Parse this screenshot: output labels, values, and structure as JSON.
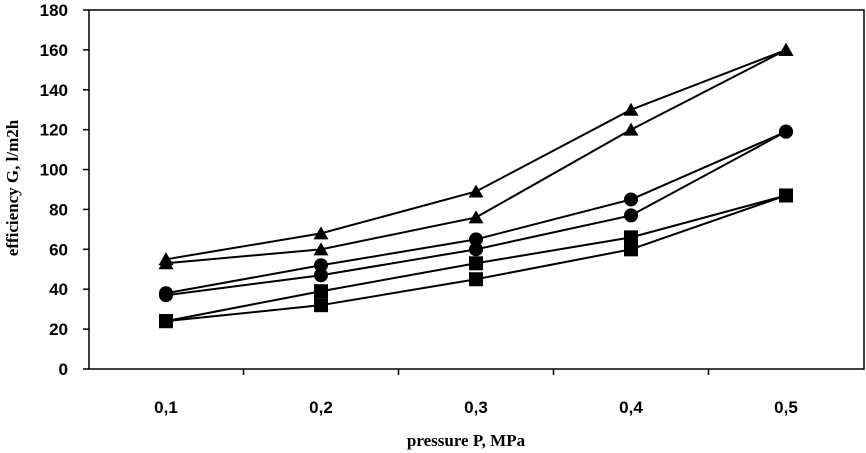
{
  "chart_data": {
    "type": "line",
    "title": "",
    "xlabel": "pressure P, MPa",
    "ylabel": "efficiency G, l/m2h",
    "categories": [
      "0,1",
      "0,2",
      "0,3",
      "0,4",
      "0,5"
    ],
    "x": [
      0.1,
      0.2,
      0.3,
      0.4,
      0.5
    ],
    "ylim": [
      0,
      180
    ],
    "yticks": [
      0,
      20,
      40,
      60,
      80,
      100,
      120,
      140,
      160,
      180
    ],
    "ytick_labels": [
      "0",
      "20",
      "40",
      "60",
      "80",
      "100",
      "120",
      "140",
      "160",
      "180"
    ],
    "grid": false,
    "legend": "none",
    "series": [
      {
        "name": "triangle-upper",
        "marker": "triangle",
        "values": [
          55,
          68,
          89,
          130,
          160
        ]
      },
      {
        "name": "triangle-lower",
        "marker": "triangle",
        "values": [
          53,
          60,
          76,
          120,
          160
        ]
      },
      {
        "name": "circle-upper",
        "marker": "circle",
        "values": [
          38,
          52,
          65,
          85,
          119
        ]
      },
      {
        "name": "circle-lower",
        "marker": "circle",
        "values": [
          37,
          47,
          60,
          77,
          119
        ]
      },
      {
        "name": "square-upper",
        "marker": "square",
        "values": [
          24,
          39,
          53,
          66,
          87
        ]
      },
      {
        "name": "square-lower",
        "marker": "square",
        "values": [
          24,
          32,
          45,
          60,
          87
        ]
      }
    ]
  }
}
